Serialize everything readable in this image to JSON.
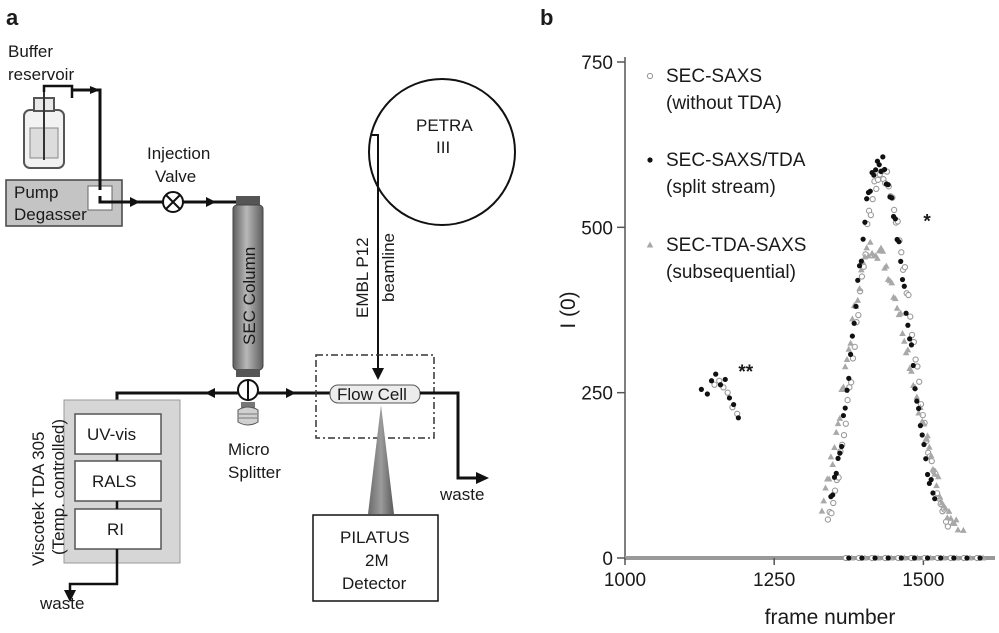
{
  "panel_a": {
    "label": "a",
    "buffer_reservoir": [
      "Buffer",
      "reservoir"
    ],
    "pump_degasser": [
      "Pump",
      "Degasser"
    ],
    "injection_valve": [
      "Injection",
      "Valve"
    ],
    "sec_column": "SEC Column",
    "petra": [
      "PETRA",
      "III"
    ],
    "beamline": [
      "EMBL P12",
      "beamline"
    ],
    "flow_cell": "Flow Cell",
    "detector": [
      "PILATUS",
      "2M",
      "Detector"
    ],
    "waste_right": "waste",
    "waste_bottom": "waste",
    "micro_splitter": [
      "Micro",
      "Splitter"
    ],
    "viscotek": [
      "Viscotek TDA 305",
      "(Temp. controlled)"
    ],
    "modules": [
      "UV-vis",
      "RALS",
      "RI"
    ]
  },
  "panel_b": {
    "label": "b"
  },
  "colors": {
    "pipe": "#111111",
    "column": "#8a8a8a",
    "tda_box": "#d6d6d6",
    "series_open": "#9a9a9a",
    "series_filled": "#111111",
    "series_triangle": "#a8a8a8"
  },
  "chart_data": {
    "type": "scatter",
    "xlabel": "frame number",
    "ylabel": "I (0)",
    "xlim": [
      1000,
      1620
    ],
    "ylim": [
      0,
      750
    ],
    "xticks": [
      1000,
      1250,
      1500
    ],
    "yticks": [
      0,
      250,
      500,
      750
    ],
    "legend_position": "top-left",
    "annotations": [
      {
        "text": "**",
        "x": 1190,
        "y": 272
      },
      {
        "text": "*",
        "x": 1500,
        "y": 500
      }
    ],
    "series": [
      {
        "name": "SEC-SAXS (without TDA)",
        "legend_lines": [
          "SEC-SAXS",
          "(without TDA)"
        ],
        "marker": "open-circle",
        "peak": {
          "center": 1430,
          "height": 580,
          "width_left": 42,
          "width_right": 50,
          "start": 1340,
          "end": 1590
        },
        "early": [
          [
            1150,
            262
          ],
          [
            1158,
            268
          ],
          [
            1165,
            258
          ],
          [
            1172,
            250
          ],
          [
            1180,
            228
          ],
          [
            1188,
            218
          ]
        ]
      },
      {
        "name": "SEC-SAXS/TDA (split stream)",
        "legend_lines": [
          "SEC-SAXS/TDA",
          "(split stream)"
        ],
        "marker": "filled-circle",
        "peak": {
          "center": 1425,
          "height": 600,
          "width_left": 40,
          "width_right": 48,
          "start": 1345,
          "end": 1520
        },
        "early": [
          [
            1128,
            255
          ],
          [
            1138,
            248
          ],
          [
            1145,
            268
          ],
          [
            1152,
            278
          ],
          [
            1160,
            262
          ],
          [
            1168,
            270
          ],
          [
            1175,
            242
          ],
          [
            1182,
            232
          ],
          [
            1190,
            212
          ]
        ]
      },
      {
        "name": "SEC-TDA-SAXS (subsequential)",
        "legend_lines": [
          "SEC-TDA-SAXS",
          "(subsequential)"
        ],
        "marker": "triangle",
        "peak": {
          "center": 1415,
          "height": 470,
          "width_left": 45,
          "width_right": 65,
          "start": 1330,
          "end": 1600
        },
        "early": []
      }
    ]
  }
}
